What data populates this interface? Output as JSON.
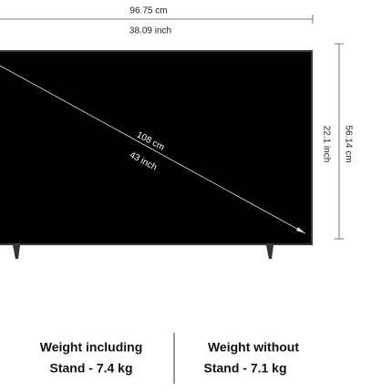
{
  "dimensions": {
    "width": {
      "metric": "96.75 cm",
      "imperial": "38.09 inch"
    },
    "diagonal": {
      "metric": "108 cm",
      "imperial": "43 inch"
    },
    "height": {
      "imperial": "22.1 inch",
      "metric": "56.14 cm"
    }
  },
  "weights": [
    {
      "line1": "Weight including",
      "line2": "Stand - 7.4 kg"
    },
    {
      "line1": "Weight without",
      "line2": "Stand - 7.1 kg"
    }
  ]
}
